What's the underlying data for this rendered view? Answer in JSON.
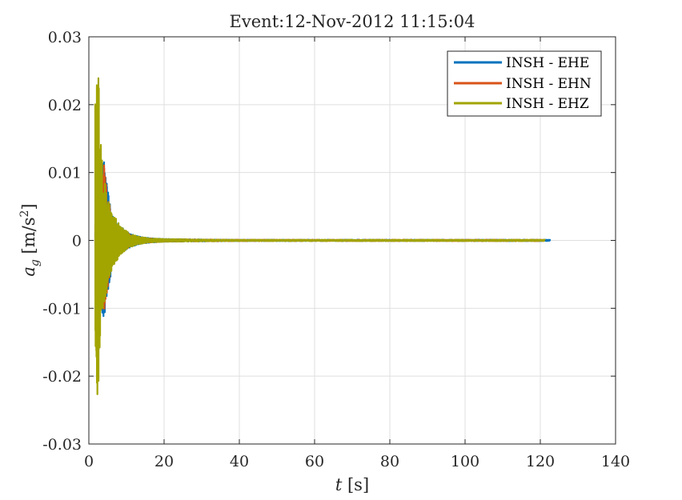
{
  "chart_data": {
    "type": "line",
    "title": "Event:12-Nov-2012 11:15:04",
    "xlabel": {
      "var": "t",
      "unit": " [s]"
    },
    "ylabel": {
      "var": "a",
      "sub": "g",
      "unit": " [m/s",
      "sup": "2",
      "close": "]"
    },
    "xlim": [
      0,
      140
    ],
    "ylim": [
      -0.03,
      0.03
    ],
    "xticks": [
      0,
      20,
      40,
      60,
      80,
      100,
      120,
      140
    ],
    "xtick_labels": [
      "0",
      "20",
      "40",
      "60",
      "80",
      "100",
      "120",
      "140"
    ],
    "yticks": [
      -0.03,
      -0.02,
      -0.01,
      0,
      0.01,
      0.02,
      0.03
    ],
    "ytick_labels": [
      "-0.03",
      "-0.02",
      "-0.01",
      "0",
      "0.01",
      "0.02",
      "0.03"
    ],
    "grid": true,
    "legend_position": "top-right",
    "series": [
      {
        "name": "INSH - EHE",
        "color": "#0072BD",
        "end_time": 122.6,
        "envelope": [
          [
            2.1,
            0.002
          ],
          [
            2.6,
            0.006
          ],
          [
            3.1,
            0.009
          ],
          [
            3.6,
            0.0115
          ],
          [
            4.0,
            0.0127
          ],
          [
            4.6,
            0.009
          ],
          [
            5.5,
            0.006
          ],
          [
            6.5,
            0.0034
          ],
          [
            8,
            0.0022
          ],
          [
            9,
            0.0018
          ],
          [
            11,
            0.001
          ],
          [
            13,
            0.0006
          ],
          [
            16,
            0.00035
          ],
          [
            20,
            0.0002
          ],
          [
            40,
            0.0001
          ],
          [
            122.6,
            0.0001
          ]
        ]
      },
      {
        "name": "INSH - EHN",
        "color": "#D95319",
        "end_time": 121.0,
        "envelope": [
          [
            2.1,
            0.003
          ],
          [
            2.6,
            0.008
          ],
          [
            3.1,
            0.0105
          ],
          [
            3.6,
            0.011
          ],
          [
            4.0,
            0.0122
          ],
          [
            4.6,
            0.0085
          ],
          [
            5.5,
            0.0055
          ],
          [
            6.5,
            0.003
          ],
          [
            8,
            0.002
          ],
          [
            9,
            0.0016
          ],
          [
            11,
            0.0009
          ],
          [
            13,
            0.0005
          ],
          [
            16,
            0.0003
          ],
          [
            20,
            0.00018
          ],
          [
            40,
            0.0001
          ],
          [
            121.0,
            0.0001
          ]
        ]
      },
      {
        "name": "INSH - EHZ",
        "color": "#A2A400",
        "end_time": 121.2,
        "envelope": [
          [
            1.9,
            0.021
          ],
          [
            2.2,
            0.0268
          ],
          [
            2.6,
            0.024
          ],
          [
            2.9,
            0.018
          ],
          [
            3.3,
            0.013
          ],
          [
            3.8,
            0.01
          ],
          [
            4.5,
            0.008
          ],
          [
            5.5,
            0.0055
          ],
          [
            6.5,
            0.004
          ],
          [
            8,
            0.0025
          ],
          [
            9,
            0.0018
          ],
          [
            11,
            0.001
          ],
          [
            13,
            0.0006
          ],
          [
            16,
            0.0003
          ],
          [
            20,
            0.0002
          ],
          [
            40,
            0.0001
          ],
          [
            121.2,
            0.0001
          ]
        ]
      }
    ]
  }
}
